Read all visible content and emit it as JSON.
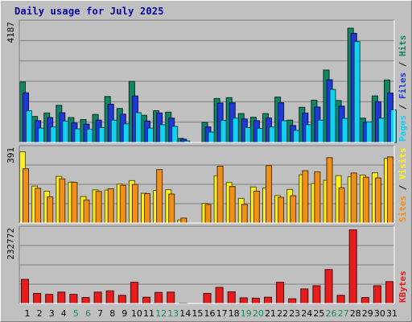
{
  "title": "Daily usage for July 2025",
  "colors": {
    "hits": "#128564",
    "files": "#1e39d6",
    "pages": "#13d1f2",
    "visits": "#fff21c",
    "sites": "#f09019",
    "kbytes": "#e71d1d",
    "weekend_label": "#148d57",
    "weekday_label": "#00009a"
  },
  "chart_data": [
    {
      "type": "bar",
      "name": "hits-files-pages",
      "ylim": [
        0,
        4187
      ],
      "y_tick_label": "4187",
      "legend": [
        "Pages",
        "Files",
        "Hits"
      ],
      "x": [
        1,
        2,
        3,
        4,
        5,
        6,
        7,
        8,
        9,
        10,
        11,
        12,
        13,
        14,
        15,
        16,
        17,
        18,
        19,
        20,
        21,
        22,
        23,
        24,
        25,
        26,
        27,
        28,
        29,
        30,
        31
      ],
      "series": [
        {
          "name": "Hits",
          "color_key": "hits",
          "values": [
            2140,
            930,
            1050,
            1320,
            890,
            820,
            1000,
            1630,
            1210,
            2160,
            970,
            1130,
            1080,
            160,
            0,
            720,
            1560,
            1590,
            1030,
            900,
            1030,
            1610,
            800,
            1250,
            1500,
            2560,
            1490,
            4030,
            870,
            1650,
            2210
          ]
        },
        {
          "name": "Files",
          "color_key": "files",
          "values": [
            1760,
            780,
            890,
            1060,
            700,
            660,
            800,
            1360,
            1010,
            1650,
            770,
            1050,
            870,
            130,
            0,
            560,
            1400,
            1410,
            840,
            780,
            880,
            1410,
            610,
            1050,
            1260,
            2220,
            1290,
            3850,
            730,
            1450,
            1750
          ]
        },
        {
          "name": "Pages",
          "color_key": "pages",
          "values": [
            1130,
            520,
            560,
            770,
            490,
            480,
            540,
            800,
            670,
            1060,
            520,
            640,
            580,
            70,
            0,
            380,
            790,
            870,
            540,
            510,
            560,
            780,
            440,
            640,
            800,
            1880,
            860,
            3560,
            740,
            870,
            1160
          ]
        }
      ]
    },
    {
      "type": "bar",
      "name": "visits-sites",
      "ylim": [
        0,
        391
      ],
      "y_tick_label": "391",
      "legend": [
        "Sites",
        "Visits"
      ],
      "x": [
        1,
        2,
        3,
        4,
        5,
        6,
        7,
        8,
        9,
        10,
        11,
        12,
        13,
        14,
        15,
        16,
        17,
        18,
        19,
        20,
        21,
        22,
        23,
        24,
        25,
        26,
        27,
        28,
        29,
        30,
        31
      ],
      "series": [
        {
          "name": "Visits",
          "color_key": "visits",
          "values": [
            378,
            197,
            170,
            248,
            218,
            142,
            177,
            176,
            208,
            226,
            159,
            174,
            178,
            18,
            0,
            106,
            251,
            216,
            132,
            192,
            187,
            147,
            179,
            257,
            211,
            228,
            252,
            246,
            255,
            267,
            344
          ]
        },
        {
          "name": "Sites",
          "color_key": "sites",
          "values": [
            288,
            185,
            140,
            235,
            217,
            123,
            169,
            183,
            201,
            206,
            157,
            284,
            155,
            28,
            0,
            100,
            302,
            195,
            100,
            170,
            305,
            138,
            146,
            278,
            272,
            347,
            188,
            266,
            244,
            240,
            351
          ]
        }
      ]
    },
    {
      "type": "bar",
      "name": "kbytes",
      "ylim": [
        0,
        232772
      ],
      "y_tick_label": "232772",
      "legend": [
        "KBytes"
      ],
      "x": [
        1,
        2,
        3,
        4,
        5,
        6,
        7,
        8,
        9,
        10,
        11,
        12,
        13,
        14,
        15,
        16,
        17,
        18,
        19,
        20,
        21,
        22,
        23,
        24,
        25,
        26,
        27,
        28,
        29,
        30,
        31
      ],
      "series": [
        {
          "name": "KBytes",
          "color_key": "kbytes",
          "values": [
            77000,
            33000,
            30000,
            37000,
            30000,
            20000,
            37000,
            41000,
            27000,
            68000,
            21000,
            36000,
            37000,
            700,
            0,
            33000,
            52000,
            38000,
            19000,
            18000,
            21000,
            68000,
            16000,
            47000,
            57000,
            108000,
            27000,
            232772,
            20000,
            57000,
            70000
          ]
        }
      ]
    }
  ],
  "x_axis": {
    "labels": [
      "1",
      "2",
      "3",
      "4",
      "5",
      "6",
      "7",
      "8",
      "9",
      "10",
      "11",
      "12",
      "13",
      "14",
      "15",
      "16",
      "17",
      "18",
      "19",
      "20",
      "21",
      "22",
      "23",
      "24",
      "25",
      "26",
      "27",
      "28",
      "29",
      "30",
      "31"
    ],
    "weekend": [
      5,
      6,
      12,
      13,
      19,
      20,
      26,
      27
    ]
  }
}
